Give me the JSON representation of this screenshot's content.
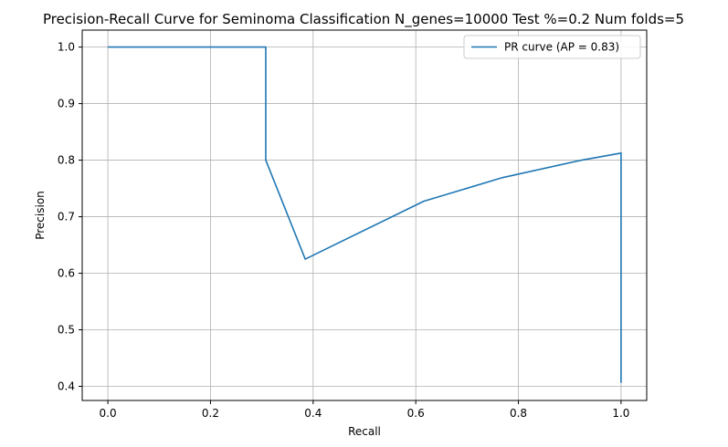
{
  "chart_data": {
    "type": "line",
    "title": "Precision-Recall Curve for Seminoma Classification N_genes=10000 Test %=0.2 Num folds=5",
    "xlabel": "Recall",
    "ylabel": "Precision",
    "xlim": [
      -0.05,
      1.05
    ],
    "ylim": [
      0.375,
      1.03
    ],
    "xticks": [
      "0.0",
      "0.2",
      "0.4",
      "0.6",
      "0.8",
      "1.0"
    ],
    "yticks": [
      "0.4",
      "0.5",
      "0.6",
      "0.7",
      "0.8",
      "0.9",
      "1.0"
    ],
    "grid": true,
    "legend_position": "top-right",
    "series": [
      {
        "name": "PR curve (AP = 0.83)",
        "color": "#1f77b4",
        "x": [
          0.0,
          0.3077,
          0.3077,
          0.3846,
          0.6154,
          0.7692,
          0.9231,
          1.0,
          1.0
        ],
        "y": [
          1.0,
          1.0,
          0.8,
          0.625,
          0.7273,
          0.7692,
          0.8,
          0.8125,
          0.4063
        ]
      }
    ]
  }
}
